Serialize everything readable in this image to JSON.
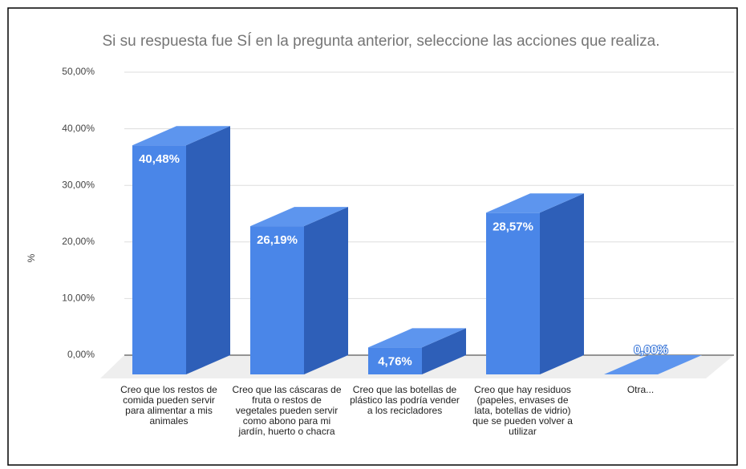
{
  "chart_data": {
    "type": "bar3d",
    "title": "Si su respuesta fue SÍ en la pregunta anterior, seleccione las acciones que realiza.",
    "y_label": "%",
    "categories": [
      "Creo que los restos de comida pueden servir para alimentar a mis animales",
      "Creo que las cáscaras de fruta o restos de vegetales pueden servir como abono para mi jardín, huerto o chacra",
      "Creo que las botellas de plástico las podría vender a los recicladores",
      "Creo que hay residuos (papeles, envases de lata, botellas de vidrio) que se pueden volver a utilizar",
      "Otra..."
    ],
    "values": [
      40.48,
      26.19,
      4.76,
      28.57,
      0
    ],
    "value_labels": [
      "40,48%",
      "26,19%",
      "4,76%",
      "28,57%",
      "0,00%"
    ],
    "color": "#4a86e8",
    "ylim": [
      0,
      50
    ],
    "yticks": [
      {
        "value": 0,
        "label": "0,00%"
      },
      {
        "value": 10,
        "label": "10,00%"
      },
      {
        "value": 20,
        "label": "20,00%"
      },
      {
        "value": 30,
        "label": "30,00%"
      },
      {
        "value": 40,
        "label": "40,00%"
      },
      {
        "value": 50,
        "label": "50,00%"
      }
    ],
    "grid": true
  }
}
